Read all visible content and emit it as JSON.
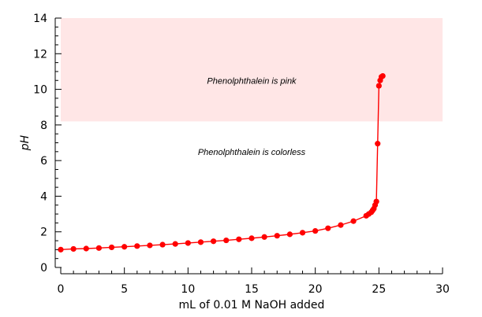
{
  "chart_data": {
    "type": "scatter",
    "xlabel": "mL of 0.01 M NaOH added",
    "ylabel": "pH",
    "xlim": [
      0,
      30
    ],
    "ylim": [
      0,
      14
    ],
    "xticks": [
      "0",
      "5",
      "10",
      "15",
      "20",
      "25",
      "30"
    ],
    "yticks": [
      "0",
      "2",
      "4",
      "6",
      "8",
      "10",
      "12",
      "14"
    ],
    "grid": false,
    "line_color": "#ff0000",
    "band_color": "#ffe6e6",
    "regions": [
      {
        "label": "Phenolphthalein is pink",
        "y_from": 8.2,
        "y_to": 14
      }
    ],
    "annotations": [
      {
        "text": "Phenolphthalein is pink",
        "x": 15,
        "y": 10.5
      },
      {
        "text": "Phenolphthalein is colorless",
        "x": 15,
        "y": 6.5
      }
    ],
    "series": [
      {
        "x": [
          0,
          1,
          2,
          3,
          4,
          5,
          6,
          7,
          8,
          9,
          10,
          11,
          12,
          13,
          14,
          15,
          16,
          17,
          18,
          19,
          20,
          21,
          22,
          23,
          24,
          24.2,
          24.4,
          24.5,
          24.6,
          24.7,
          24.8,
          24.9,
          25.0,
          25.1,
          25.2,
          25.3
        ],
        "y": [
          1.0,
          1.04,
          1.06,
          1.09,
          1.13,
          1.16,
          1.2,
          1.24,
          1.28,
          1.32,
          1.37,
          1.42,
          1.47,
          1.52,
          1.58,
          1.64,
          1.71,
          1.78,
          1.86,
          1.95,
          2.05,
          2.2,
          2.38,
          2.6,
          2.9,
          3.0,
          3.1,
          3.2,
          3.3,
          3.5,
          3.7,
          6.95,
          10.2,
          10.5,
          10.7,
          10.75
        ]
      }
    ]
  }
}
